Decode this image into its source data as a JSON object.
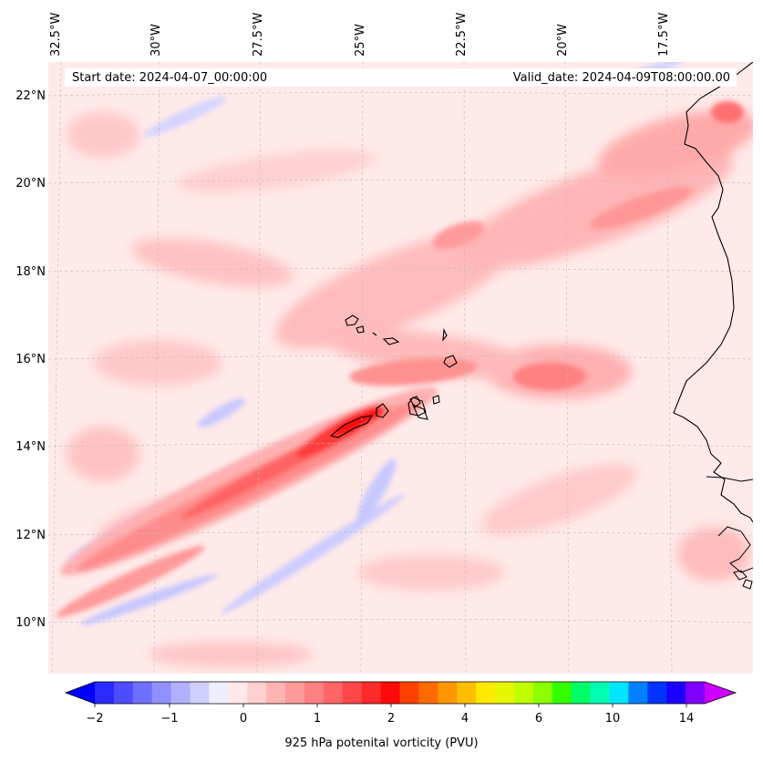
{
  "map": {
    "start_date": "Start date: 2024-04-07_00:00:00",
    "valid_date": "Valid_date: 2024-04-09T08:00:00.00",
    "lon_labels": [
      "32.5°W",
      "30°W",
      "27.5°W",
      "25°W",
      "22.5°W",
      "20°W",
      "17.5°W"
    ],
    "lat_labels": [
      "22°N",
      "20°N",
      "18°N",
      "16°N",
      "14°N",
      "12°N",
      "10°N"
    ],
    "extent": {
      "lon_min": -33,
      "lon_max": -15.5,
      "lat_min": 8.9,
      "lat_max": 22.8
    },
    "variable": "925 hPa potential vorticity",
    "features": [
      "Cabo Verde islands",
      "West African coastline (Mauritania, Senegal, Gambia, Guinea-Bissau)"
    ]
  },
  "colorbar": {
    "label": "925 hPa potenital vorticity (PVU)",
    "tick_labels": [
      "−2",
      "−1",
      "0",
      "1",
      "2",
      "4",
      "6",
      "10",
      "14"
    ],
    "colors": [
      "#0000ff",
      "#2a2aff",
      "#4d4dff",
      "#6f6fff",
      "#9090ff",
      "#b0b0ff",
      "#d0d0ff",
      "#eeeeff",
      "#ffe8e8",
      "#ffd0d0",
      "#ffb4b4",
      "#ff9a9a",
      "#ff8080",
      "#ff6565",
      "#ff4848",
      "#ff2b2b",
      "#ff0a0a",
      "#ff4000",
      "#ff6a00",
      "#ff9500",
      "#ffbf00",
      "#ffea00",
      "#e6f500",
      "#bfff00",
      "#8cff00",
      "#33ff00",
      "#00ff66",
      "#00ffb3",
      "#00e5ff",
      "#0080ff",
      "#0033ff",
      "#1a00ff",
      "#7f00ff",
      "#cc00ff"
    ],
    "under_color": "#0000ff",
    "over_color": "#cc00ff"
  }
}
